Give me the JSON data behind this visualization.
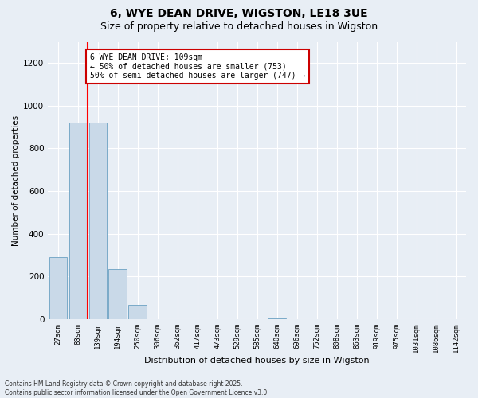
{
  "title_line1": "6, WYE DEAN DRIVE, WIGSTON, LE18 3UE",
  "title_line2": "Size of property relative to detached houses in Wigston",
  "xlabel": "Distribution of detached houses by size in Wigston",
  "ylabel": "Number of detached properties",
  "footnote": "Contains HM Land Registry data © Crown copyright and database right 2025.\nContains public sector information licensed under the Open Government Licence v3.0.",
  "bar_labels": [
    "27sqm",
    "83sqm",
    "139sqm",
    "194sqm",
    "250sqm",
    "306sqm",
    "362sqm",
    "417sqm",
    "473sqm",
    "529sqm",
    "585sqm",
    "640sqm",
    "696sqm",
    "752sqm",
    "808sqm",
    "863sqm",
    "919sqm",
    "975sqm",
    "1031sqm",
    "1086sqm",
    "1142sqm"
  ],
  "bar_values": [
    290,
    920,
    920,
    235,
    65,
    0,
    0,
    0,
    0,
    0,
    0,
    4,
    0,
    0,
    0,
    0,
    0,
    0,
    0,
    0,
    0
  ],
  "bar_color": "#c9d9e8",
  "bar_edge_color": "#7aaac8",
  "red_line_x": 1.5,
  "annotation_text": "6 WYE DEAN DRIVE: 109sqm\n← 50% of detached houses are smaller (753)\n50% of semi-detached houses are larger (747) →",
  "annotation_box_color": "#ffffff",
  "annotation_box_edge_color": "#cc0000",
  "ylim": [
    0,
    1300
  ],
  "yticks": [
    0,
    200,
    400,
    600,
    800,
    1000,
    1200
  ],
  "background_color": "#e8eef5",
  "plot_background": "#e8eef5",
  "grid_color": "#ffffff",
  "title_fontsize": 10,
  "subtitle_fontsize": 9
}
